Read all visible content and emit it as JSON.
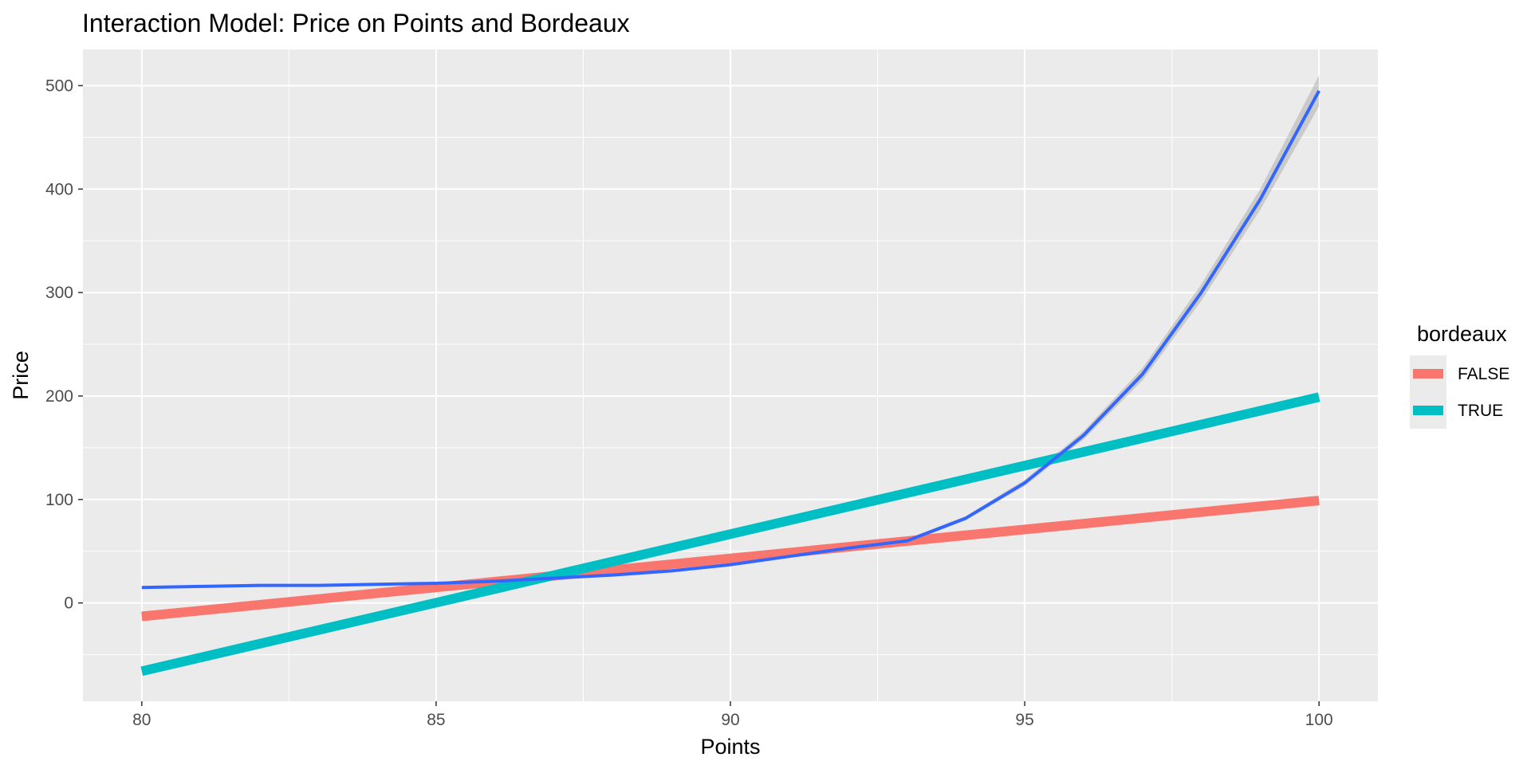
{
  "chart_data": {
    "type": "line",
    "title": "Interaction Model: Price on Points and Bordeaux",
    "xlabel": "Points",
    "ylabel": "Price",
    "xlim": [
      79,
      101
    ],
    "ylim": [
      -95,
      535
    ],
    "x_ticks": [
      80,
      85,
      90,
      95,
      100
    ],
    "x_tick_labels": [
      "80",
      "85",
      "90",
      "95",
      "100"
    ],
    "y_ticks": [
      0,
      100,
      200,
      300,
      400,
      500
    ],
    "y_tick_labels": [
      "0",
      "100",
      "200",
      "300",
      "400",
      "500"
    ],
    "grid": true,
    "legend": {
      "title": "bordeaux",
      "placement": "right",
      "entries": [
        {
          "label": "FALSE",
          "color": "#F8766D"
        },
        {
          "label": "TRUE",
          "color": "#00BFC4"
        }
      ]
    },
    "series": [
      {
        "name": "FALSE",
        "color": "#F8766D",
        "x": [
          80,
          100
        ],
        "y": [
          -13,
          99
        ]
      },
      {
        "name": "TRUE",
        "color": "#00BFC4",
        "x": [
          80,
          100
        ],
        "y": [
          -66,
          199
        ]
      },
      {
        "color": "#3366FF",
        "x": [
          80,
          81,
          82,
          83,
          84,
          85,
          86,
          87,
          88,
          89,
          90,
          91,
          92,
          93,
          94,
          95,
          96,
          97,
          98,
          99,
          100
        ],
        "y": [
          15,
          16,
          17,
          17,
          18,
          19,
          21,
          24,
          27,
          31,
          37,
          45,
          53,
          60,
          82,
          116,
          162,
          221,
          300,
          390,
          495
        ],
        "ci_upper": [
          16,
          17,
          18,
          18,
          19,
          20,
          22,
          25,
          28,
          32,
          38,
          46,
          54,
          62,
          84,
          119,
          166,
          227,
          308,
          400,
          510
        ],
        "ci_lower": [
          14,
          15,
          16,
          16,
          17,
          18,
          20,
          23,
          26,
          30,
          36,
          44,
          52,
          58,
          80,
          113,
          158,
          215,
          292,
          380,
          480
        ]
      }
    ]
  }
}
